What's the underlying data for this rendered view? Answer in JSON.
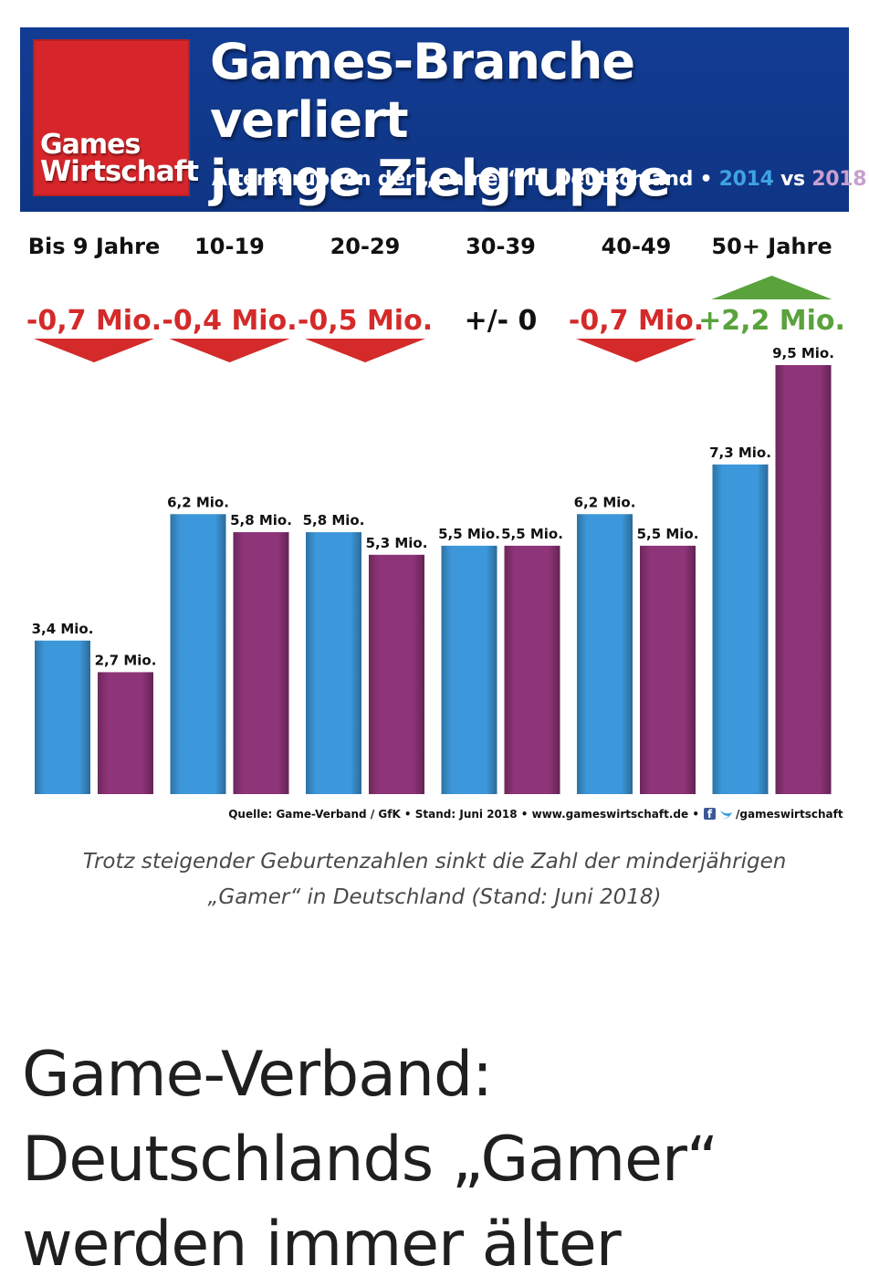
{
  "banner": {
    "logo_line1": "Games",
    "logo_line2": "Wirtschaft",
    "headline_line1": "Games-Branche verliert",
    "headline_line2": "junge Zielgruppe",
    "subtitle_prefix": "Altersgruppen der „Gamer“ in Deutschland •",
    "subtitle_year1": "2014",
    "subtitle_vs": "vs",
    "subtitle_year2": "2018"
  },
  "chart_data": {
    "type": "bar",
    "categories": [
      "Bis 9 Jahre",
      "10-19",
      "20-29",
      "30-39",
      "40-49",
      "50+ Jahre"
    ],
    "series": [
      {
        "name": "2014",
        "color": "#3d98db",
        "values": [
          3.4,
          6.2,
          5.8,
          5.5,
          6.2,
          7.3
        ],
        "labels": [
          "3,4 Mio.",
          "6,2 Mio.",
          "5,8 Mio.",
          "5,5 Mio.",
          "6,2 Mio.",
          "7,3 Mio."
        ]
      },
      {
        "name": "2018",
        "color": "#8e3478",
        "values": [
          2.7,
          5.8,
          5.3,
          5.5,
          5.5,
          9.5
        ],
        "labels": [
          "2,7 Mio.",
          "5,8 Mio.",
          "5,3 Mio.",
          "5,5 Mio.",
          "5,5 Mio.",
          "9,5 Mio."
        ]
      }
    ],
    "changes": [
      {
        "label": "-0,7 Mio.",
        "direction": "down"
      },
      {
        "label": "-0,4 Mio.",
        "direction": "down"
      },
      {
        "label": "-0,5 Mio.",
        "direction": "down"
      },
      {
        "label": "+/- 0",
        "direction": "none"
      },
      {
        "label": "-0,7 Mio.",
        "direction": "down"
      },
      {
        "label": "+2,2 Mio.",
        "direction": "up"
      }
    ],
    "colors": {
      "down": "#d42a2a",
      "up": "#5aa23c",
      "neutral": "#111111"
    },
    "ylim": [
      0,
      9.5
    ],
    "grid": false,
    "source": "Quelle: Game-Verband / GfK • Stand: Juni 2018 • www.gameswirtschaft.de •",
    "source_handle": "/gameswirtschaft",
    "social_icons": [
      "facebook-icon",
      "twitter-icon"
    ]
  },
  "caption": {
    "line1": "Trotz steigender Geburtenzahlen sinkt die Zahl der minderjährigen",
    "line2": "„Gamer“ in Deutschland (Stand: Juni 2018)"
  },
  "article": {
    "title_line1": "Game-Verband:",
    "title_line2": "Deutschlands „Gamer“",
    "title_line3": "werden immer älter"
  }
}
